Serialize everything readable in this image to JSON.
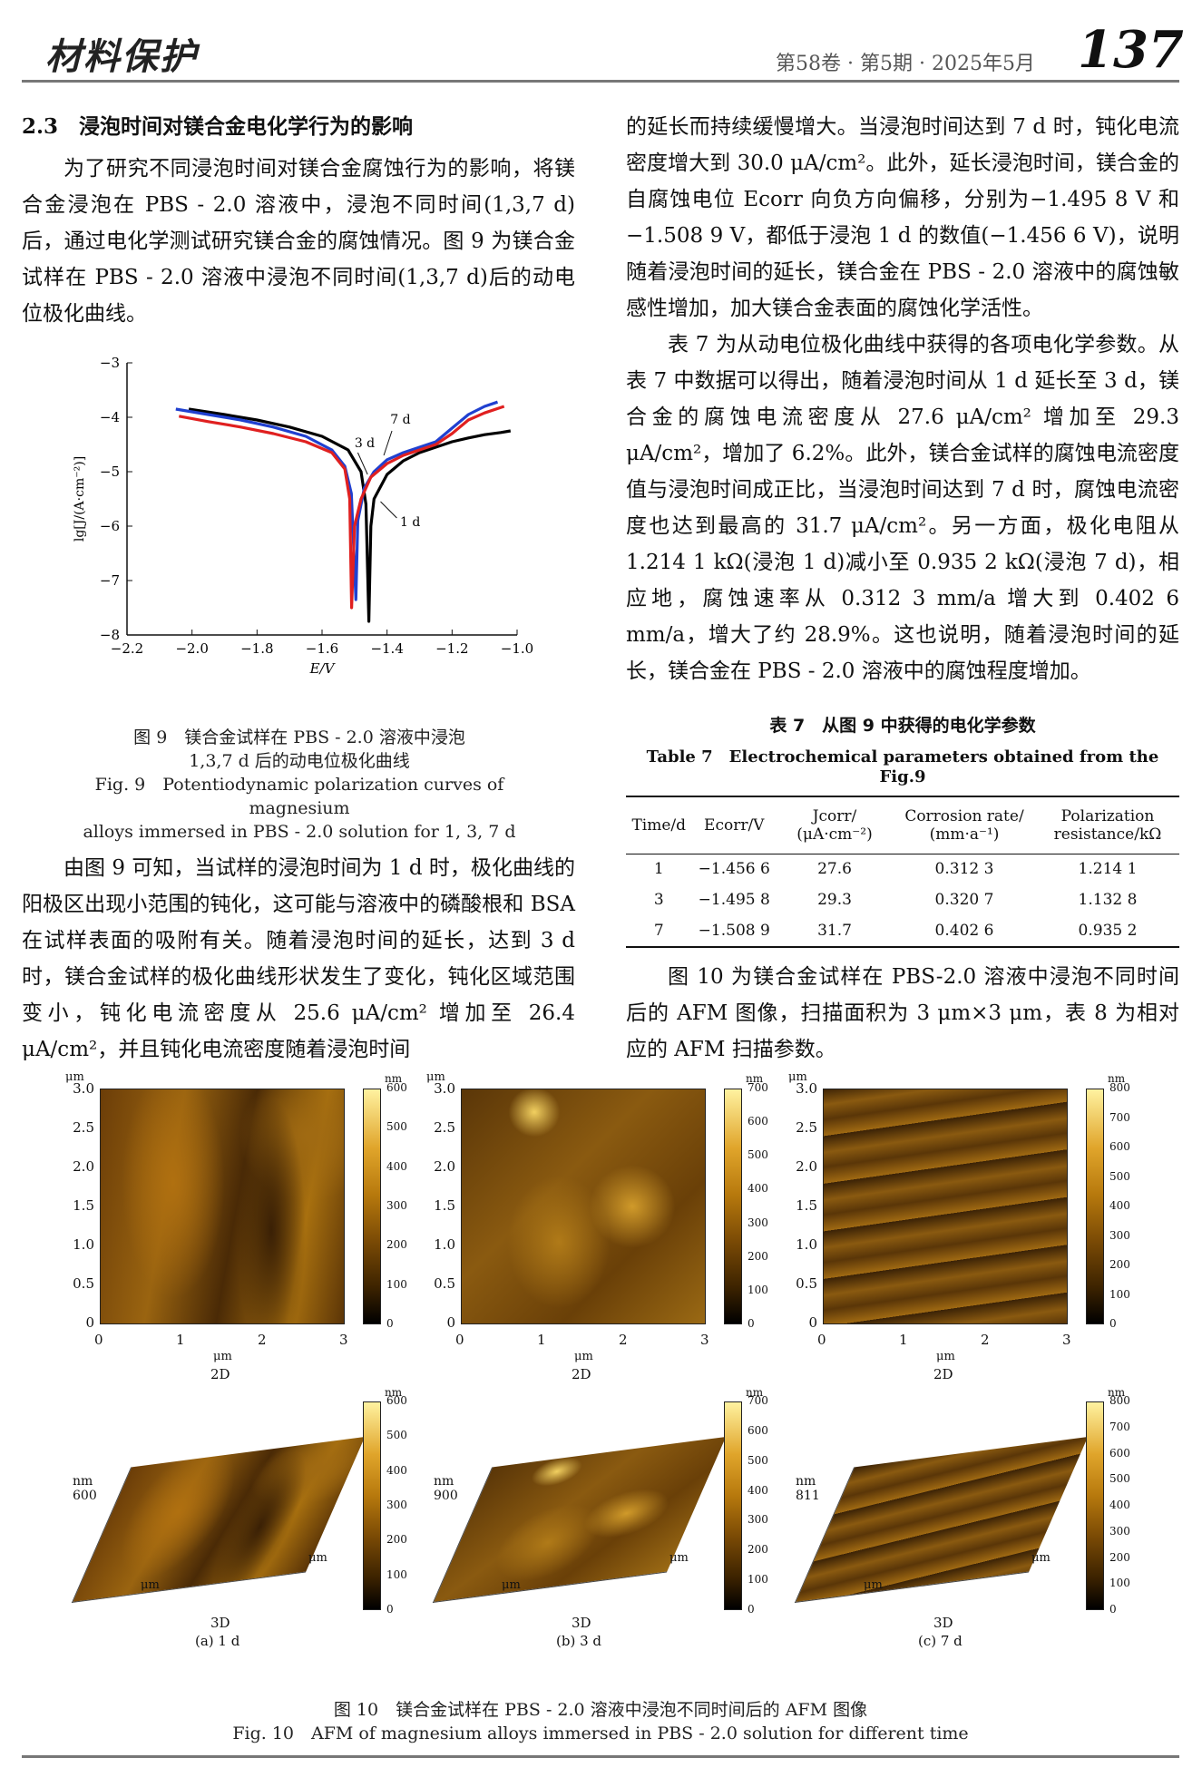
{
  "header": {
    "journal_logo": "材料保护",
    "issue": "第58卷 · 第5期 · 2025年5月",
    "page": "137"
  },
  "section": {
    "number": "2.3",
    "title": "浸泡时间对镁合金电化学行为的影响"
  },
  "left_col": {
    "p1": "为了研究不同浸泡时间对镁合金腐蚀行为的影响，将镁合金浸泡在 PBS - 2.0 溶液中，浸泡不同时间(1,3,7 d)后，通过电化学测试研究镁合金的腐蚀情况。图 9 为镁合金试样在 PBS - 2.0 溶液中浸泡不同时间(1,3,7 d)后的动电位极化曲线。",
    "p2": "由图 9 可知，当试样的浸泡时间为 1 d 时，极化曲线的阳极区出现小范围的钝化，这可能与溶液中的磷酸根和 BSA 在试样表面的吸附有关。随着浸泡时间的延长，达到 3 d 时，镁合金试样的极化曲线形状发生了变化，钝化区域范围变小，钝化电流密度从 25.6 μA/cm² 增加至 26.4 μA/cm²，并且钝化电流密度随着浸泡时间"
  },
  "right_col": {
    "p1": "的延长而持续缓慢增大。当浸泡时间达到 7 d 时，钝化电流密度增大到 30.0 μA/cm²。此外，延长浸泡时间，镁合金的自腐蚀电位 Ecorr 向负方向偏移，分别为−1.495 8 V 和−1.508 9 V，都低于浸泡 1 d 的数值(−1.456 6 V)，说明随着浸泡时间的延长，镁合金在 PBS - 2.0 溶液中的腐蚀敏感性增加，加大镁合金表面的腐蚀化学活性。",
    "p2": "表 7 为从动电位极化曲线中获得的各项电化学参数。从表 7 中数据可以得出，随着浸泡时间从 1 d 延长至 3 d，镁合金的腐蚀电流密度从 27.6 μA/cm² 增加至 29.3 μA/cm²，增加了 6.2%。此外，镁合金试样的腐蚀电流密度值与浸泡时间成正比，当浸泡时间达到 7 d 时，腐蚀电流密度也达到最高的 31.7 μA/cm²。另一方面，极化电阻从 1.214 1 kΩ(浸泡 1 d)减小至 0.935 2 kΩ(浸泡 7 d)，相应地，腐蚀速率从 0.312 3 mm/a 增大到 0.402 6 mm/a，增大了约 28.9%。这也说明，随着浸泡时间的延长，镁合金在 PBS - 2.0 溶液中的腐蚀程度增加。",
    "p3": "图 10 为镁合金试样在 PBS-2.0 溶液中浸泡不同时间后的 AFM 图像，扫描面积为 3 μm×3 μm，表 8 为相对应的 AFM 扫描参数。"
  },
  "fig9": {
    "caption_cn_1": "图 9　镁合金试样在 PBS - 2.0 溶液中浸泡",
    "caption_cn_2": "1,3,7 d 后的动电位极化曲线",
    "caption_en_1": "Fig. 9　Potentiodynamic polarization curves of magnesium",
    "caption_en_2": "alloys immersed in PBS - 2.0 solution for 1, 3, 7 d"
  },
  "chart_data": {
    "type": "line",
    "xlabel": "E/V",
    "ylabel": "lg[J/(A·cm⁻²)]",
    "xlim": [
      -2.2,
      -1.0
    ],
    "ylim": [
      -8,
      -3
    ],
    "xticks": [
      "−2.2",
      "−2.0",
      "−1.8",
      "−1.6",
      "−1.4",
      "−1.2",
      "−1.0"
    ],
    "yticks": [
      "−3",
      "−4",
      "−5",
      "−6",
      "−7",
      "−8"
    ],
    "series": [
      {
        "name": "1 d",
        "color": "#000000",
        "x": [
          -2.01,
          -1.9,
          -1.8,
          -1.7,
          -1.6,
          -1.52,
          -1.48,
          -1.465,
          -1.456,
          -1.45,
          -1.44,
          -1.4,
          -1.35,
          -1.3,
          -1.25,
          -1.2,
          -1.15,
          -1.1,
          -1.05,
          -1.02
        ],
        "y": [
          -3.85,
          -3.95,
          -4.05,
          -4.18,
          -4.35,
          -4.6,
          -5.0,
          -5.6,
          -7.75,
          -6.0,
          -5.5,
          -5.05,
          -4.8,
          -4.65,
          -4.55,
          -4.45,
          -4.38,
          -4.32,
          -4.28,
          -4.25
        ]
      },
      {
        "name": "3 d",
        "color": "#2040d0",
        "x": [
          -2.05,
          -1.95,
          -1.85,
          -1.75,
          -1.65,
          -1.57,
          -1.53,
          -1.51,
          -1.496,
          -1.49,
          -1.47,
          -1.44,
          -1.4,
          -1.35,
          -1.3,
          -1.25,
          -1.2,
          -1.15,
          -1.1,
          -1.06
        ],
        "y": [
          -3.85,
          -3.95,
          -4.05,
          -4.18,
          -4.35,
          -4.6,
          -4.9,
          -5.4,
          -7.35,
          -5.9,
          -5.3,
          -5.0,
          -4.78,
          -4.65,
          -4.55,
          -4.45,
          -4.2,
          -3.95,
          -3.8,
          -3.72
        ]
      },
      {
        "name": "7 d",
        "color": "#e02020",
        "x": [
          -2.04,
          -1.95,
          -1.85,
          -1.75,
          -1.65,
          -1.57,
          -1.53,
          -1.515,
          -1.509,
          -1.5,
          -1.48,
          -1.45,
          -1.4,
          -1.35,
          -1.3,
          -1.25,
          -1.2,
          -1.15,
          -1.1,
          -1.04
        ],
        "y": [
          -3.98,
          -4.08,
          -4.18,
          -4.3,
          -4.45,
          -4.65,
          -4.95,
          -5.5,
          -7.5,
          -6.0,
          -5.5,
          -5.1,
          -4.85,
          -4.7,
          -4.6,
          -4.5,
          -4.3,
          -4.05,
          -3.92,
          -3.8
        ]
      }
    ],
    "annotations": [
      {
        "text": "7 d"
      },
      {
        "text": "3 d"
      },
      {
        "text": "1 d"
      }
    ]
  },
  "table7": {
    "title_cn": "表 7　从图 9 中获得的电化学参数",
    "title_en": "Table 7　Electrochemical parameters obtained from the Fig.9",
    "headers": [
      "Time/d",
      "Ecorr/V",
      "Jcorr/ (μA·cm⁻²)",
      "Corrosion rate/ (mm·a⁻¹)",
      "Polarization resistance/kΩ"
    ],
    "rows": [
      [
        "1",
        "−1.456 6",
        "27.6",
        "0.312 3",
        "1.214 1"
      ],
      [
        "3",
        "−1.495 8",
        "29.3",
        "0.320 7",
        "1.132 8"
      ],
      [
        "7",
        "−1.508 9",
        "31.7",
        "0.402 6",
        "0.935 2"
      ]
    ]
  },
  "fig10": {
    "panels": [
      {
        "label": "(a) 1 d",
        "cb_max": [
          "600",
          "500",
          "400",
          "300",
          "200",
          "100",
          "0"
        ],
        "cb_max_3d": [
          "600",
          "500",
          "400",
          "300",
          "200",
          "100",
          "0"
        ],
        "z_label": "600"
      },
      {
        "label": "(b) 3 d",
        "cb_max": [
          "700",
          "600",
          "500",
          "400",
          "300",
          "200",
          "100",
          "0"
        ],
        "cb_max_3d": [
          "700",
          "600",
          "500",
          "400",
          "300",
          "200",
          "100",
          "0"
        ],
        "z_label": "900"
      },
      {
        "label": "(c) 7 d",
        "cb_max": [
          "800",
          "700",
          "600",
          "500",
          "400",
          "300",
          "200",
          "100",
          "0"
        ],
        "cb_max_3d": [
          "800",
          "700",
          "600",
          "500",
          "400",
          "300",
          "200",
          "100",
          "0"
        ],
        "z_label": "811"
      }
    ],
    "y_ticks": [
      "3.0",
      "2.5",
      "2.0",
      "1.5",
      "1.0",
      "0.5",
      "0"
    ],
    "x_ticks": [
      "0",
      "1",
      "2",
      "3"
    ],
    "unit_um": "μm",
    "unit_nm": "nm",
    "label_2d": "2D",
    "label_3d": "3D",
    "caption_cn": "图 10　镁合金试样在 PBS - 2.0 溶液中浸泡不同时间后的 AFM 图像",
    "caption_en": "Fig. 10　AFM of magnesium alloys immersed in PBS - 2.0 solution for different time"
  }
}
